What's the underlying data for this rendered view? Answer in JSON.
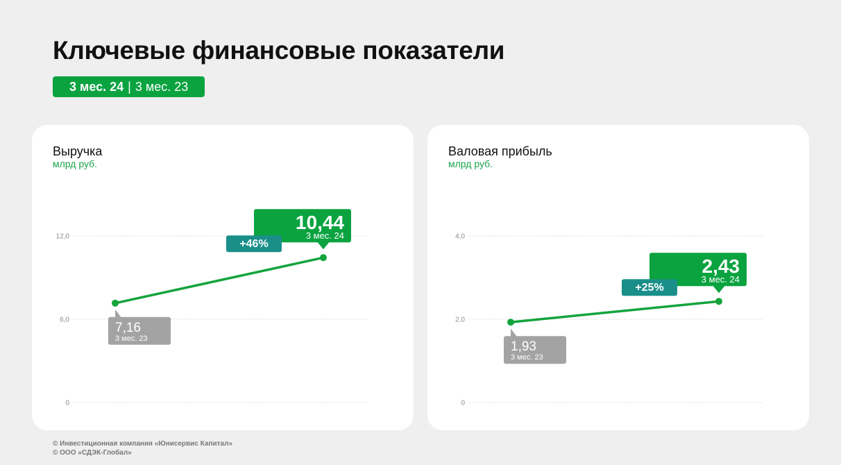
{
  "page": {
    "title": "Ключевые финансовые показатели",
    "period_badge": {
      "current": "3 мес. 24",
      "separator": "|",
      "previous": "3 мес. 23"
    },
    "footer": [
      "© Инвестиционная компания «Юнисервис Капитал»",
      "© ООО «СДЭК-Глобал»"
    ]
  },
  "colors": {
    "background": "#efefef",
    "card": "#ffffff",
    "accent_green": "#0aa340",
    "line_green": "#14a43c",
    "teal": "#1a8f8a",
    "gray_label": "#a3a3a3",
    "gridline": "#dddddd",
    "unit_green": "#18a34a"
  },
  "chart_data": [
    {
      "type": "line",
      "title": "Выручка",
      "subtitle": "млрд руб.",
      "x": [
        "3 мес. 23",
        "3 мес. 24"
      ],
      "values": [
        7.16,
        10.44
      ],
      "ylim": [
        0,
        12
      ],
      "ytick_labels": [
        "12,0",
        "6,0",
        "0"
      ],
      "ytick_values": [
        12,
        6,
        0
      ],
      "grid": true,
      "labels": [
        {
          "value": "7,16",
          "period": "3 мес. 23"
        },
        {
          "value": "10,44",
          "period": "3 мес. 24"
        }
      ],
      "change": "+46%"
    },
    {
      "type": "line",
      "title": "Валовая прибыль",
      "subtitle": "млрд руб.",
      "x": [
        "3 мес. 23",
        "3 мес. 24"
      ],
      "values": [
        1.93,
        2.43
      ],
      "ylim": [
        0,
        4
      ],
      "ytick_labels": [
        "4,0",
        "2,0",
        "0"
      ],
      "ytick_values": [
        4,
        2,
        0
      ],
      "grid": true,
      "labels": [
        {
          "value": "1,93",
          "period": "3 мес. 23"
        },
        {
          "value": "2,43",
          "period": "3 мес. 24"
        }
      ],
      "change": "+25%"
    }
  ]
}
